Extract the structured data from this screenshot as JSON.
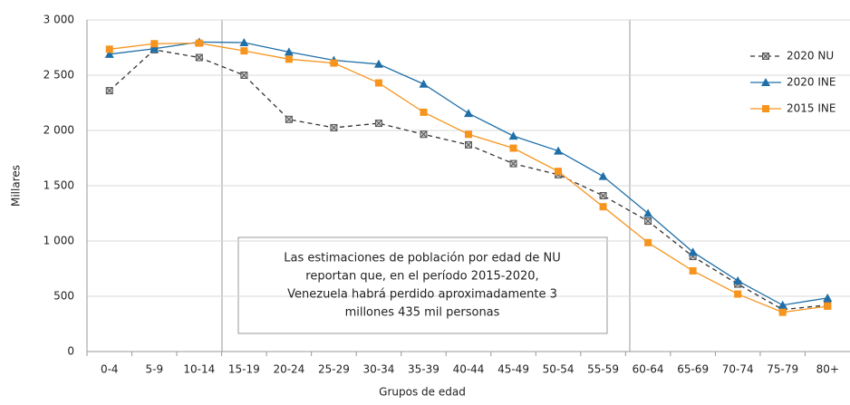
{
  "chart_data": {
    "type": "line",
    "xlabel": "Grupos de edad",
    "ylabel": "Millares",
    "categories": [
      "0-4",
      "5-9",
      "10-14",
      "15-19",
      "20-24",
      "25-29",
      "30-34",
      "35-39",
      "40-44",
      "45-49",
      "50-54",
      "55-59",
      "60-64",
      "65-69",
      "70-74",
      "75-79",
      "80+"
    ],
    "series": [
      {
        "name": "2020 NU",
        "color": "#333333",
        "dashed": true,
        "marker": "xsquare",
        "values": [
          2360,
          2730,
          2660,
          2500,
          2100,
          2025,
          2065,
          1965,
          1870,
          1700,
          1600,
          1410,
          1180,
          860,
          610,
          380,
          420
        ]
      },
      {
        "name": "2020 INE",
        "color": "#1f6fa8",
        "marker": "triangle",
        "values": [
          2690,
          2740,
          2800,
          2795,
          2710,
          2635,
          2600,
          2420,
          2155,
          1950,
          1815,
          1585,
          1250,
          900,
          640,
          420,
          485
        ]
      },
      {
        "name": "2015 INE",
        "color": "#f7941d",
        "marker": "square",
        "values": [
          2735,
          2785,
          2790,
          2720,
          2645,
          2610,
          2430,
          2165,
          1965,
          1840,
          1630,
          1310,
          985,
          730,
          520,
          355,
          410
        ]
      }
    ],
    "ylim": [
      0,
      3000
    ],
    "yticks": [
      0,
      500,
      {
        "value": 1000,
        "label": "1 000"
      },
      {
        "value": 1500,
        "label": "1 500"
      },
      {
        "value": 2000,
        "label": "2 000"
      },
      {
        "value": 2500,
        "label": "2 500"
      },
      {
        "value": 3000,
        "label": "3 000"
      }
    ],
    "grid": true,
    "legend": "right",
    "annotation": [
      "Las estimaciones de población por edad de NU",
      "reportan que, en el período 2015-2020,",
      "Venezuela habrá perdido aproximadamente 3",
      "millones 435 mil personas"
    ]
  }
}
